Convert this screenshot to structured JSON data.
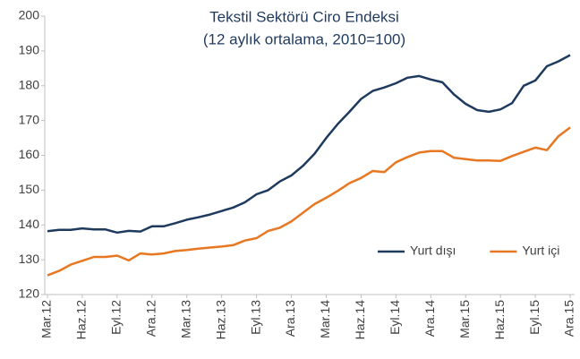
{
  "chart_data": {
    "type": "line",
    "title": "Tekstil Sektörü Ciro Endeksi",
    "subtitle": "(12 aylık ortalama, 2010=100)",
    "categories": [
      "Mar.12",
      null,
      null,
      "Haz.12",
      null,
      null,
      "Eyl.12",
      null,
      null,
      "Ara.12",
      null,
      null,
      "Mar.13",
      null,
      null,
      "Haz.13",
      null,
      null,
      "Eyl.13",
      null,
      null,
      "Ara.13",
      null,
      null,
      "Mar.14",
      null,
      null,
      "Haz.14",
      null,
      null,
      "Eyl.14",
      null,
      null,
      "Ara.14",
      null,
      null,
      "Mar.15",
      null,
      null,
      "Haz.15",
      null,
      null,
      "Eyl.15",
      null,
      null,
      "Ara.15"
    ],
    "series": [
      {
        "name": "Yurt dışı",
        "color": "#1f3a5f",
        "values": [
          138.2,
          138.6,
          138.6,
          139.0,
          138.7,
          138.7,
          137.8,
          138.3,
          138.1,
          139.6,
          139.6,
          140.5,
          141.5,
          142.2,
          143.0,
          144.0,
          145.0,
          146.5,
          148.8,
          150.0,
          152.5,
          154.2,
          157.0,
          160.5,
          165.0,
          169.0,
          172.5,
          176.2,
          178.5,
          179.5,
          180.7,
          182.3,
          182.8,
          181.8,
          181.0,
          177.5,
          174.8,
          173.0,
          172.5,
          173.2,
          175.0,
          180.0,
          181.5,
          185.6,
          187.0,
          188.8
        ]
      },
      {
        "name": "Yurt içi",
        "color": "#e87722",
        "values": [
          125.5,
          126.8,
          128.6,
          129.7,
          130.8,
          130.8,
          131.2,
          129.8,
          131.8,
          131.5,
          131.8,
          132.5,
          132.8,
          133.2,
          133.5,
          133.8,
          134.2,
          135.5,
          136.2,
          138.3,
          139.2,
          141.0,
          143.5,
          146.0,
          147.8,
          149.8,
          152.0,
          153.5,
          155.5,
          155.2,
          158.0,
          159.5,
          160.8,
          161.2,
          161.2,
          159.3,
          158.9,
          158.5,
          158.5,
          158.4,
          159.8,
          161.0,
          162.2,
          161.5,
          165.5,
          168.0
        ]
      }
    ],
    "ylim": [
      120,
      200
    ],
    "yticks": [
      120,
      130,
      140,
      150,
      160,
      170,
      180,
      190,
      200
    ],
    "grid": false,
    "legend": "lower right"
  }
}
